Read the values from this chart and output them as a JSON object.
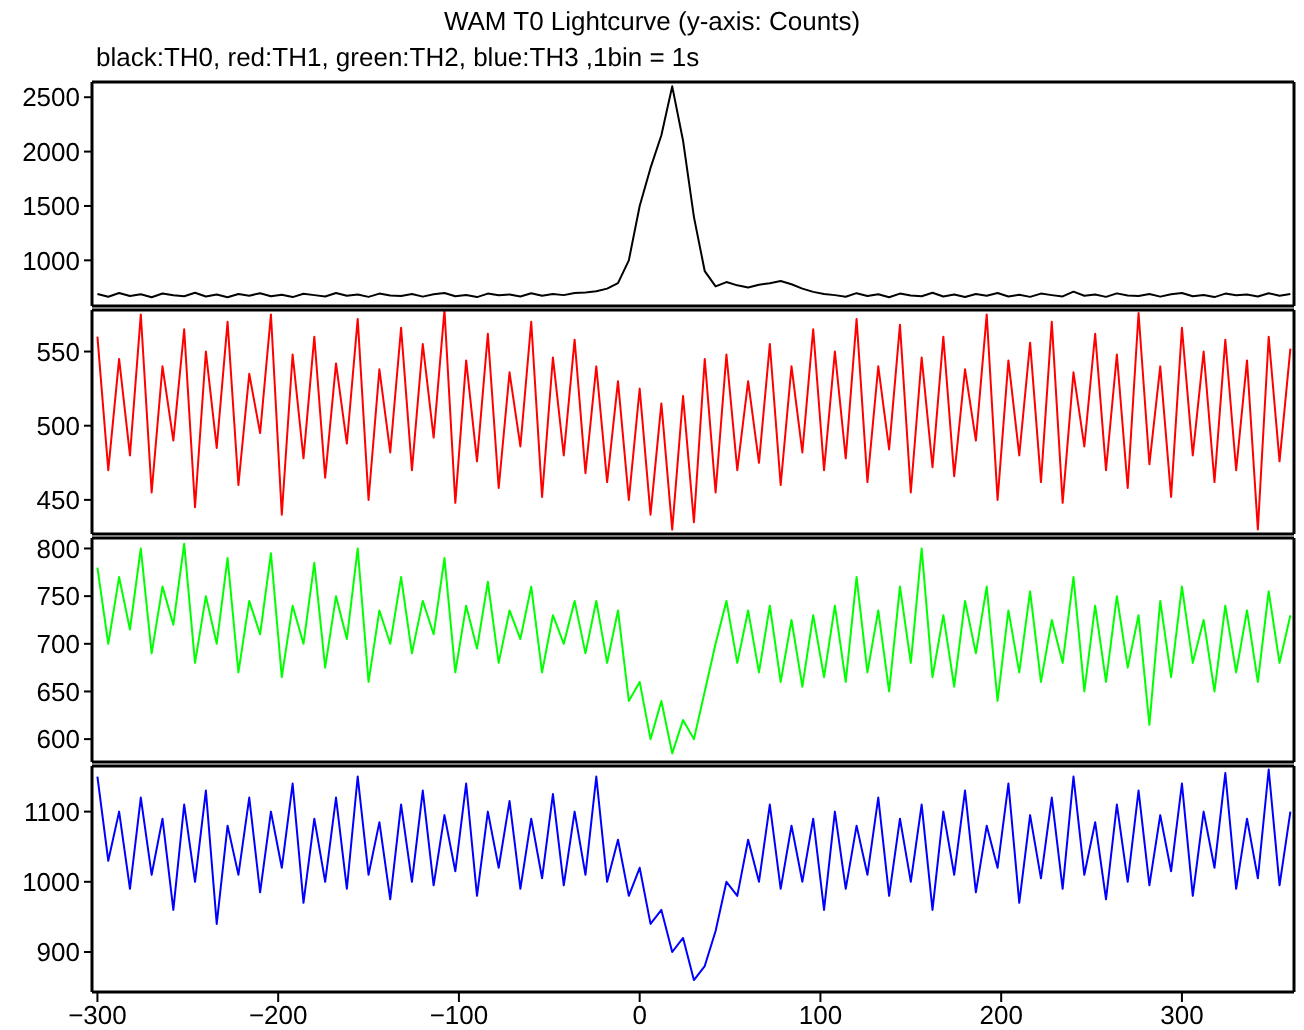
{
  "chart_data": [
    {
      "type": "line",
      "title": "WAM T0 Lightcurve (y-axis: Counts)",
      "subtitle": "black:TH0, red:TH1, green:TH2, blue:TH3 ,1bin = 1s",
      "xlim": [
        -303,
        362
      ],
      "xticks": [
        -300,
        -200,
        -100,
        0,
        100,
        200,
        300
      ],
      "ylim": [
        580,
        2640
      ],
      "yticks": [
        1000,
        1500,
        2000,
        2500
      ],
      "tick_labels": "y",
      "grid": false,
      "legend": false,
      "marker": "none",
      "x": [
        -300,
        -294,
        -288,
        -282,
        -276,
        -270,
        -264,
        -258,
        -252,
        -246,
        -240,
        -234,
        -228,
        -222,
        -216,
        -210,
        -204,
        -198,
        -192,
        -186,
        -180,
        -174,
        -168,
        -162,
        -156,
        -150,
        -144,
        -138,
        -132,
        -126,
        -120,
        -114,
        -108,
        -102,
        -96,
        -90,
        -84,
        -78,
        -72,
        -66,
        -60,
        -54,
        -48,
        -42,
        -36,
        -30,
        -24,
        -18,
        -12,
        -6,
        0,
        6,
        12,
        18,
        24,
        30,
        36,
        42,
        48,
        54,
        60,
        66,
        72,
        78,
        84,
        90,
        96,
        102,
        108,
        114,
        120,
        126,
        132,
        138,
        144,
        150,
        156,
        162,
        168,
        174,
        180,
        186,
        192,
        198,
        204,
        210,
        216,
        222,
        228,
        234,
        240,
        246,
        252,
        258,
        264,
        270,
        276,
        282,
        288,
        294,
        300,
        306,
        312,
        318,
        324,
        330,
        336,
        342,
        348,
        354,
        360
      ],
      "series": [
        {
          "color": "#000000",
          "values": [
            690,
            665,
            700,
            672,
            688,
            660,
            695,
            678,
            670,
            702,
            668,
            685,
            660,
            690,
            675,
            698,
            670,
            684,
            662,
            692,
            680,
            668,
            700,
            674,
            686,
            664,
            694,
            676,
            672,
            690,
            666,
            688,
            700,
            670,
            682,
            662,
            694,
            678,
            686,
            668,
            698,
            674,
            690,
            680,
            700,
            705,
            715,
            740,
            790,
            1000,
            1500,
            1850,
            2150,
            2600,
            2100,
            1400,
            900,
            760,
            800,
            770,
            750,
            775,
            790,
            810,
            780,
            740,
            710,
            690,
            680,
            665,
            698,
            672,
            688,
            660,
            694,
            676,
            670,
            702,
            668,
            686,
            662,
            690,
            674,
            700,
            668,
            684,
            664,
            694,
            680,
            668,
            712,
            674,
            686,
            664,
            696,
            676,
            672,
            690,
            666,
            688,
            700,
            670,
            682,
            662,
            694,
            678,
            686,
            668,
            698,
            674,
            690
          ]
        }
      ]
    },
    {
      "type": "line",
      "xlim": [
        -303,
        362
      ],
      "xticks": [
        -300,
        -200,
        -100,
        0,
        100,
        200,
        300
      ],
      "ylim": [
        427,
        578
      ],
      "yticks": [
        450,
        500,
        550
      ],
      "tick_labels": "y",
      "grid": false,
      "legend": false,
      "marker": "none",
      "x": [
        -300,
        -294,
        -288,
        -282,
        -276,
        -270,
        -264,
        -258,
        -252,
        -246,
        -240,
        -234,
        -228,
        -222,
        -216,
        -210,
        -204,
        -198,
        -192,
        -186,
        -180,
        -174,
        -168,
        -162,
        -156,
        -150,
        -144,
        -138,
        -132,
        -126,
        -120,
        -114,
        -108,
        -102,
        -96,
        -90,
        -84,
        -78,
        -72,
        -66,
        -60,
        -54,
        -48,
        -42,
        -36,
        -30,
        -24,
        -18,
        -12,
        -6,
        0,
        6,
        12,
        18,
        24,
        30,
        36,
        42,
        48,
        54,
        60,
        66,
        72,
        78,
        84,
        90,
        96,
        102,
        108,
        114,
        120,
        126,
        132,
        138,
        144,
        150,
        156,
        162,
        168,
        174,
        180,
        186,
        192,
        198,
        204,
        210,
        216,
        222,
        228,
        234,
        240,
        246,
        252,
        258,
        264,
        270,
        276,
        282,
        288,
        294,
        300,
        306,
        312,
        318,
        324,
        330,
        336,
        342,
        348,
        354,
        360
      ],
      "series": [
        {
          "color": "#ff0000",
          "values": [
            560,
            470,
            545,
            480,
            575,
            455,
            540,
            490,
            565,
            445,
            550,
            485,
            570,
            460,
            535,
            495,
            575,
            440,
            548,
            478,
            560,
            465,
            542,
            488,
            572,
            450,
            538,
            482,
            566,
            470,
            555,
            492,
            578,
            448,
            544,
            476,
            562,
            458,
            536,
            486,
            570,
            452,
            546,
            480,
            558,
            468,
            540,
            462,
            530,
            450,
            525,
            440,
            515,
            430,
            520,
            435,
            545,
            455,
            548,
            470,
            530,
            475,
            555,
            460,
            540,
            482,
            565,
            470,
            550,
            478,
            572,
            462,
            540,
            484,
            568,
            455,
            546,
            472,
            560,
            466,
            538,
            490,
            575,
            450,
            544,
            480,
            556,
            462,
            570,
            448,
            536,
            486,
            562,
            470,
            548,
            458,
            576,
            474,
            540,
            452,
            566,
            480,
            550,
            462,
            558,
            470,
            544,
            430,
            560,
            476,
            552
          ]
        }
      ]
    },
    {
      "type": "line",
      "xlim": [
        -303,
        362
      ],
      "xticks": [
        -300,
        -200,
        -100,
        0,
        100,
        200,
        300
      ],
      "ylim": [
        576,
        811
      ],
      "yticks": [
        600,
        650,
        700,
        750,
        800
      ],
      "tick_labels": "y",
      "grid": false,
      "legend": false,
      "marker": "none",
      "x": [
        -300,
        -294,
        -288,
        -282,
        -276,
        -270,
        -264,
        -258,
        -252,
        -246,
        -240,
        -234,
        -228,
        -222,
        -216,
        -210,
        -204,
        -198,
        -192,
        -186,
        -180,
        -174,
        -168,
        -162,
        -156,
        -150,
        -144,
        -138,
        -132,
        -126,
        -120,
        -114,
        -108,
        -102,
        -96,
        -90,
        -84,
        -78,
        -72,
        -66,
        -60,
        -54,
        -48,
        -42,
        -36,
        -30,
        -24,
        -18,
        -12,
        -6,
        0,
        6,
        12,
        18,
        24,
        30,
        36,
        42,
        48,
        54,
        60,
        66,
        72,
        78,
        84,
        90,
        96,
        102,
        108,
        114,
        120,
        126,
        132,
        138,
        144,
        150,
        156,
        162,
        168,
        174,
        180,
        186,
        192,
        198,
        204,
        210,
        216,
        222,
        228,
        234,
        240,
        246,
        252,
        258,
        264,
        270,
        276,
        282,
        288,
        294,
        300,
        306,
        312,
        318,
        324,
        330,
        336,
        342,
        348,
        354,
        360
      ],
      "series": [
        {
          "color": "#00ff00",
          "values": [
            780,
            700,
            770,
            715,
            800,
            690,
            760,
            720,
            805,
            680,
            750,
            700,
            790,
            670,
            745,
            710,
            795,
            665,
            740,
            700,
            785,
            675,
            750,
            705,
            800,
            660,
            735,
            700,
            770,
            690,
            745,
            710,
            790,
            670,
            740,
            695,
            765,
            680,
            735,
            705,
            760,
            670,
            730,
            700,
            745,
            690,
            745,
            680,
            735,
            640,
            660,
            600,
            640,
            585,
            620,
            600,
            650,
            700,
            745,
            680,
            735,
            670,
            740,
            660,
            725,
            655,
            730,
            665,
            740,
            660,
            770,
            670,
            735,
            650,
            760,
            680,
            800,
            665,
            730,
            655,
            745,
            690,
            760,
            640,
            735,
            670,
            755,
            660,
            725,
            680,
            770,
            650,
            740,
            660,
            750,
            675,
            730,
            615,
            745,
            665,
            760,
            680,
            725,
            650,
            740,
            670,
            735,
            660,
            755,
            680,
            730
          ]
        }
      ]
    },
    {
      "type": "line",
      "xlim": [
        -303,
        362
      ],
      "xticks": [
        -300,
        -200,
        -100,
        0,
        100,
        200,
        300
      ],
      "ylim": [
        843,
        1165
      ],
      "yticks": [
        900,
        1000,
        1100
      ],
      "grid": false,
      "legend": false,
      "marker": "none",
      "x": [
        -300,
        -294,
        -288,
        -282,
        -276,
        -270,
        -264,
        -258,
        -252,
        -246,
        -240,
        -234,
        -228,
        -222,
        -216,
        -210,
        -204,
        -198,
        -192,
        -186,
        -180,
        -174,
        -168,
        -162,
        -156,
        -150,
        -144,
        -138,
        -132,
        -126,
        -120,
        -114,
        -108,
        -102,
        -96,
        -90,
        -84,
        -78,
        -72,
        -66,
        -60,
        -54,
        -48,
        -42,
        -36,
        -30,
        -24,
        -18,
        -12,
        -6,
        0,
        6,
        12,
        18,
        24,
        30,
        36,
        42,
        48,
        54,
        60,
        66,
        72,
        78,
        84,
        90,
        96,
        102,
        108,
        114,
        120,
        126,
        132,
        138,
        144,
        150,
        156,
        162,
        168,
        174,
        180,
        186,
        192,
        198,
        204,
        210,
        216,
        222,
        228,
        234,
        240,
        246,
        252,
        258,
        264,
        270,
        276,
        282,
        288,
        294,
        300,
        306,
        312,
        318,
        324,
        330,
        336,
        342,
        348,
        354,
        360
      ],
      "series": [
        {
          "color": "#0000ff",
          "values": [
            1150,
            1030,
            1100,
            990,
            1120,
            1010,
            1090,
            960,
            1110,
            1000,
            1130,
            940,
            1080,
            1010,
            1120,
            985,
            1100,
            1020,
            1140,
            970,
            1090,
            1000,
            1120,
            990,
            1150,
            1010,
            1085,
            975,
            1110,
            1000,
            1130,
            995,
            1095,
            1015,
            1140,
            980,
            1100,
            1020,
            1115,
            990,
            1090,
            1005,
            1125,
            995,
            1100,
            1010,
            1150,
            1000,
            1060,
            980,
            1020,
            940,
            960,
            900,
            920,
            860,
            880,
            930,
            1000,
            980,
            1060,
            1000,
            1110,
            990,
            1080,
            1000,
            1090,
            960,
            1100,
            990,
            1080,
            1010,
            1120,
            980,
            1090,
            1000,
            1110,
            960,
            1100,
            1010,
            1130,
            985,
            1080,
            1020,
            1140,
            970,
            1095,
            1005,
            1120,
            990,
            1150,
            1010,
            1085,
            975,
            1110,
            1000,
            1130,
            995,
            1095,
            1015,
            1140,
            980,
            1100,
            1020,
            1155,
            990,
            1090,
            1005,
            1160,
            995,
            1100
          ]
        }
      ]
    }
  ]
}
